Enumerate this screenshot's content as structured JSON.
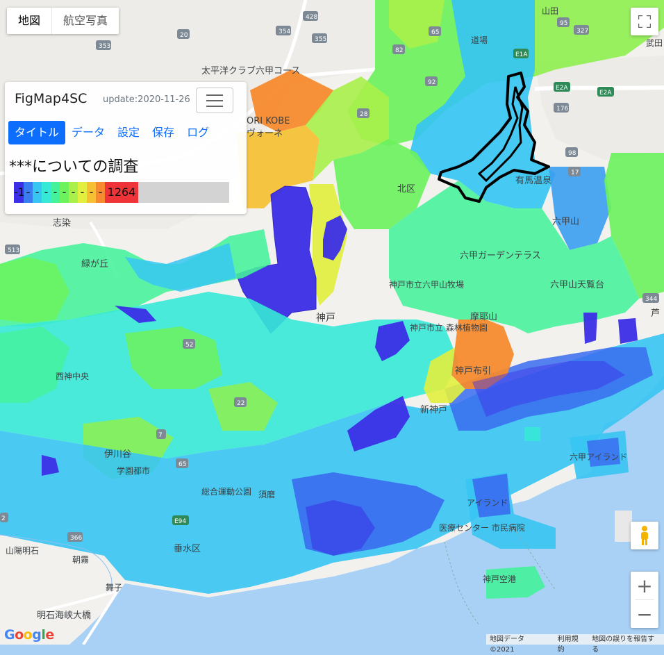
{
  "map_type": {
    "map": "地図",
    "satellite": "航空写真"
  },
  "panel": {
    "brand": "FigMap4SC",
    "update": "update:2020-11-26",
    "tabs": [
      "タイトル",
      "データ",
      "設定",
      "保存",
      "ログ"
    ],
    "title": "***についての調査",
    "legend": {
      "min": "-1",
      "max": "1264",
      "dash": "-"
    }
  },
  "colors": {
    "accent": "#0d6efd",
    "scale": [
      "#3b2ee6",
      "#3a7df0",
      "#37c5f2",
      "#36e9d6",
      "#44f29c",
      "#6cf25c",
      "#a9f04a",
      "#e2ef3e",
      "#f5c133",
      "#f58a2e",
      "#ee3438"
    ],
    "sea": "#a9d0f5"
  },
  "labels": {
    "golf": "太平洋クラブ六甲コース",
    "kobe_partial": "ORI KOBE",
    "wanone": "ヴォーネ",
    "kitaku": "北区",
    "arima": "有馬温泉",
    "rokko": "六甲山",
    "garden": "六甲ガーデンテラス",
    "ranch": "神戸市立六甲山牧場",
    "tenran": "六甲山天覧台",
    "maya": "摩耶山",
    "forest": "神戸市立\n森林植物園",
    "nunobiki": "神戸布引",
    "shinkobe": "新神戸",
    "kobe": "神戸",
    "shizumi": "志染",
    "midorigaoka": "緑が丘",
    "nishikobe": "西神中央",
    "ikawadani": "伊川谷",
    "gakuen": "学園都市",
    "sogoundo": "総合運動公園",
    "suma": "須磨",
    "tarumi": "垂水区",
    "maiko": "舞子",
    "akashi_bridge": "明石海峡大橋",
    "sanyo_akashi": "山陽明石",
    "asagiri": "朝霧",
    "kobe_airport": "神戸空港",
    "iryo": "医療センター\n市民病院",
    "park_island": "アイランド",
    "rokko_island": "六甲アイランド",
    "ashiya": "芦",
    "takeda": "武田",
    "dojo": "道場",
    "yamada": "山田",
    "route_highway": "E2A"
  },
  "shields": [
    "428",
    "354",
    "20",
    "353",
    "355",
    "65",
    "95",
    "176",
    "98",
    "17",
    "513",
    "52",
    "22",
    "7",
    "65",
    "2",
    "366",
    "344",
    "92",
    "82",
    "327",
    "E1A",
    "E2A",
    "E2A",
    "E94",
    "28"
  ],
  "footer": {
    "google": "Google",
    "attribution": [
      "地図データ ©2021",
      "利用規約",
      "地図の誤りを報告する"
    ]
  },
  "controls": {
    "zoom_in": "+",
    "zoom_out": "−"
  }
}
